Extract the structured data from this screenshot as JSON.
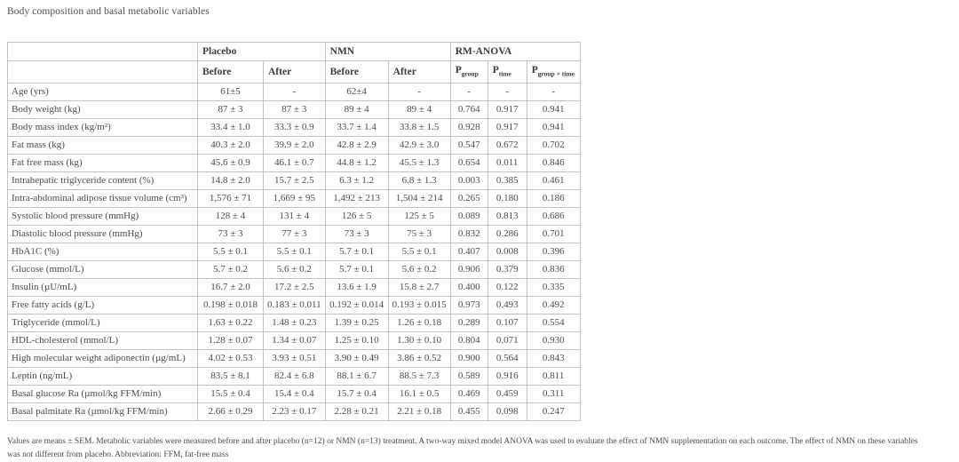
{
  "page": {
    "title": "Body composition and basal metabolic variables",
    "footnote_lines": [
      "Values are means ± SEM. Metabolic variables were measured before and after placebo (n=12) or NMN (n=13) treatment. A two-way mixed model ANOVA was used to evaluate the effect of NMN supplementation on each outcome. The effect of NMN on these variables",
      "was not different from placebo. Abbreviation: FFM, fat-free mass"
    ]
  },
  "table": {
    "groups": [
      {
        "label": "Placebo"
      },
      {
        "label": "NMN"
      },
      {
        "label": "RM-ANOVA"
      }
    ],
    "time_headers": [
      "Before",
      "After",
      "Before",
      "After"
    ],
    "p_headers": [
      {
        "base": "P",
        "sub": "group"
      },
      {
        "base": "P",
        "sub": "time"
      },
      {
        "base": "P",
        "sub": "group × time"
      }
    ],
    "rows": [
      {
        "label": "Age (yrs)",
        "cells": [
          "61±5",
          "-",
          "62±4",
          "-",
          "-",
          "-",
          "-"
        ]
      },
      {
        "label": "Body weight (kg)",
        "cells": [
          "87 ± 3",
          "87 ± 3",
          "89 ± 4",
          "89 ± 4",
          "0.764",
          "0.917",
          "0.941"
        ]
      },
      {
        "label": "Body mass index (kg/m²)",
        "cells": [
          "33.4 ± 1.0",
          "33.3 ± 0.9",
          "33.7 ± 1.4",
          "33.8 ± 1.5",
          "0.928",
          "0.917",
          "0.941"
        ]
      },
      {
        "label": "Fat mass (kg)",
        "cells": [
          "40.3 ± 2.0",
          "39.9 ± 2.0",
          "42.8 ± 2.9",
          "42.9 ± 3.0",
          "0.547",
          "0.672",
          "0.702"
        ]
      },
      {
        "label": "Fat free mass (kg)",
        "cells": [
          "45.6 ± 0.9",
          "46.1 ± 0.7",
          "44.8 ± 1.2",
          "45.5 ± 1.3",
          "0.654",
          "0.011",
          "0.846"
        ]
      },
      {
        "label": "Intrahepatic triglyceride content (%)",
        "cells": [
          "14.8 ± 2.0",
          "15.7 ± 2.5",
          "6.3 ± 1.2",
          "6.8 ± 1.3",
          "0.003",
          "0.385",
          "0.461"
        ]
      },
      {
        "label": "Intra-abdominal adipose tissue volume (cm³)",
        "cells": [
          "1,576 ± 71",
          "1,669 ± 95",
          "1,492 ± 213",
          "1,504 ± 214",
          "0.265",
          "0.180",
          "0.186"
        ]
      },
      {
        "label": "Systolic blood pressure (mmHg)",
        "cells": [
          "128 ± 4",
          "131 ± 4",
          "126 ± 5",
          "125 ± 5",
          "0.089",
          "0.813",
          "0.686"
        ]
      },
      {
        "label": "Diastolic blood pressure (mmHg)",
        "cells": [
          "73 ± 3",
          "77 ± 3",
          "73 ± 3",
          "75 ± 3",
          "0.832",
          "0.286",
          "0.701"
        ]
      },
      {
        "label": "HbA1C (%)",
        "cells": [
          "5.5 ± 0.1",
          "5.5 ± 0.1",
          "5.7 ± 0.1",
          "5.5 ± 0.1",
          "0.407",
          "0.008",
          "0.396"
        ]
      },
      {
        "label": "Glucose (mmol/L)",
        "cells": [
          "5.7 ± 0.2",
          "5.6 ± 0.2",
          "5.7 ± 0.1",
          "5.6 ± 0.2",
          "0.906",
          "0.379",
          "0.836"
        ]
      },
      {
        "label": "Insulin (µU/mL)",
        "cells": [
          "16.7 ± 2.0",
          "17.2 ± 2.5",
          "13.6 ± 1.9",
          "15.8 ± 2.7",
          "0.400",
          "0.122",
          "0.335"
        ]
      },
      {
        "label": "Free fatty acids (g/L)",
        "cells": [
          "0.198 ± 0.018",
          "0.183 ± 0.011",
          "0.192 ± 0.014",
          "0.193 ± 0.015",
          "0.973",
          "0.493",
          "0.492"
        ]
      },
      {
        "label": "Triglyceride (mmol/L)",
        "cells": [
          "1.63 ± 0.22",
          "1.48 ± 0.23",
          "1.39 ± 0.25",
          "1.26 ± 0.18",
          "0.289",
          "0.107",
          "0.554"
        ]
      },
      {
        "label": "HDL-cholesterol (mmol/L)",
        "cells": [
          "1.28 ± 0.07",
          "1.34 ± 0.07",
          "1.25 ± 0.10",
          "1.30 ± 0.10",
          "0.804",
          "0.071",
          "0.930"
        ]
      },
      {
        "label": "High molecular weight adiponectin (µg/mL)",
        "cells": [
          "4.02 ± 0.53",
          "3.93 ± 0.51",
          "3.90 ± 0.49",
          "3.86 ± 0.52",
          "0.900",
          "0.564",
          "0.843"
        ]
      },
      {
        "label": "Leptin (ng/mL)",
        "cells": [
          "83.5 ± 8.1",
          "82.4 ± 6.8",
          "88.1 ± 6.7",
          "88.5 ± 7.3",
          "0.589",
          "0.916",
          "0.811"
        ]
      },
      {
        "label": "Basal glucose Ra (µmol/kg FFM/min)",
        "cells": [
          "15.5 ± 0.4",
          "15.4 ± 0.4",
          "15.7 ± 0.4",
          "16.1 ± 0.5",
          "0.469",
          "0.459",
          "0.311"
        ]
      },
      {
        "label": "Basal palmitate Ra (µmol/kg FFM/min)",
        "cells": [
          "2.66 ± 0.29",
          "2.23 ± 0.17",
          "2.28 ± 0.21",
          "2.21 ± 0.18",
          "0.455",
          "0.098",
          "0.247"
        ]
      }
    ]
  }
}
